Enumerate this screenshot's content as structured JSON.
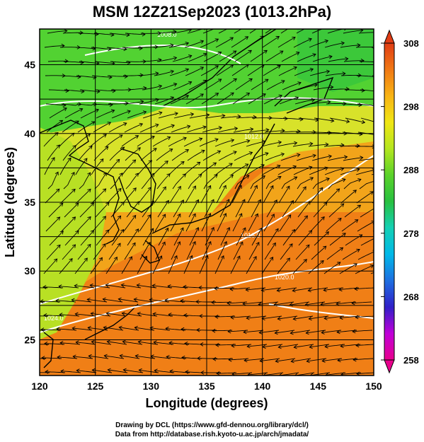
{
  "title": "MSM 12Z21Sep2023 (1013.2hPa)",
  "x_axis": {
    "label": "Longitude (degrees)",
    "ticks": [
      "120",
      "125",
      "130",
      "135",
      "140",
      "145",
      "150"
    ]
  },
  "y_axis": {
    "label": "Latitude (degrees)",
    "ticks": [
      "25",
      "30",
      "35",
      "40",
      "45"
    ]
  },
  "colorbar": {
    "min": 258,
    "max": 308,
    "tick_labels": [
      "308",
      "298",
      "288",
      "278",
      "268",
      "258"
    ],
    "colors": [
      "#e8008c",
      "#c000d8",
      "#3020c8",
      "#1e6ee0",
      "#00b8e8",
      "#14d0b4",
      "#28c040",
      "#5ad22a",
      "#b4e620",
      "#f0e614",
      "#f8b414",
      "#f07814",
      "#e03c14"
    ]
  },
  "map": {
    "lon_range": [
      120,
      150
    ],
    "lat_range": [
      22.4,
      47.6
    ],
    "contour_labels": [
      "1008.0",
      "1012.0",
      "1016.0",
      "1020.0",
      "1024.0"
    ]
  },
  "credits": {
    "line1": "Drawing by DCL (https://www.gfd-dennou.org/library/dcl/)",
    "line2": "Data from http://database.rish.kyoto-u.ac.jp/arch/jmadata/"
  }
}
